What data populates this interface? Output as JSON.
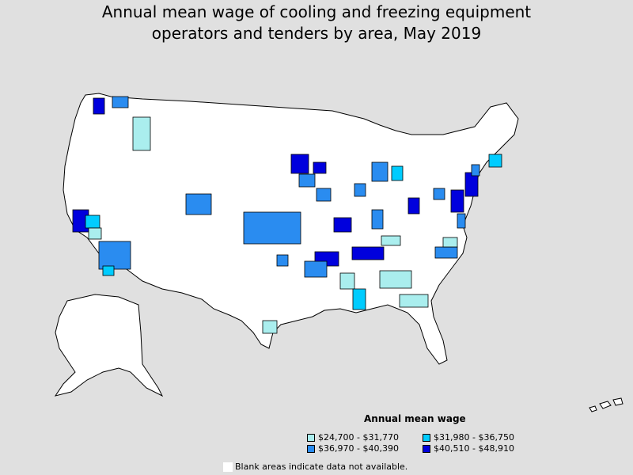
{
  "title_line1": "Annual mean wage of cooling and freezing equipment",
  "title_line2": "operators and tenders by area, May 2019",
  "legend": {
    "title": "Annual mean wage",
    "items": [
      {
        "label": "$24,700 - $31,770",
        "color": "#aaeeee"
      },
      {
        "label": "$31,980 - $36,750",
        "color": "#00ccff"
      },
      {
        "label": "$36,970 - $40,390",
        "color": "#2a8cf0"
      },
      {
        "label": "$40,510 - $48,910",
        "color": "#0000dd"
      }
    ]
  },
  "note": "Blank areas indicate data not available.",
  "colors": {
    "background": "#e0e0e0",
    "land": "#ffffff",
    "border": "#000000"
  }
}
